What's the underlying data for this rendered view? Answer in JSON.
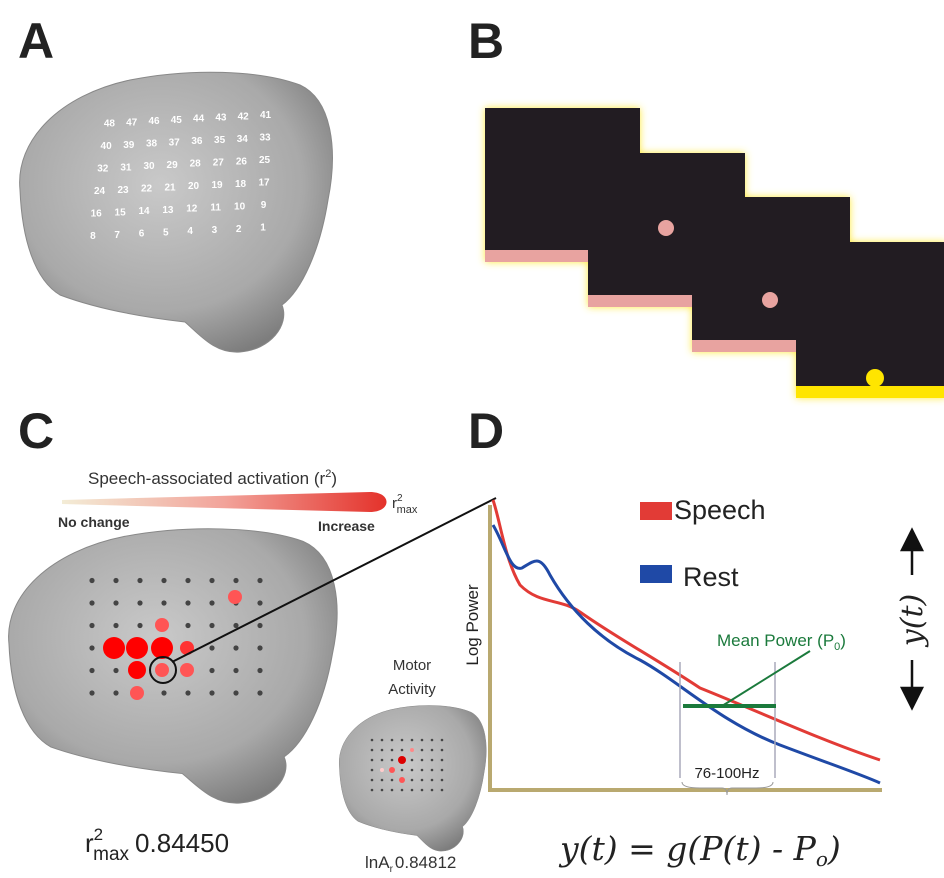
{
  "panels": {
    "a": {
      "label": "A",
      "electrodes": [
        1,
        2,
        3,
        4,
        5,
        6,
        7,
        8,
        9,
        10,
        11,
        12,
        13,
        14,
        15,
        16,
        17,
        18,
        19,
        20,
        21,
        22,
        23,
        24,
        25,
        26,
        27,
        28,
        29,
        30,
        31,
        32,
        33,
        34,
        35,
        36,
        37,
        38,
        39,
        40,
        41,
        42,
        43,
        44,
        45,
        46,
        47,
        48
      ]
    },
    "b": {
      "label": "B"
    },
    "c": {
      "label": "C",
      "scale_title": "Speech-associated activation (r",
      "scale_title_sup": "2",
      "scale_title_end": ")",
      "scale_min": "No change",
      "scale_max": "Increase",
      "rmax_r": "r",
      "rmax_sup": "2",
      "rmax_sub": "max",
      "result_value": "0.84450",
      "inset_title_line1": "Motor",
      "inset_title_line2": "Activity",
      "inset_label": "lnA",
      "inset_label_sub": "r",
      "inset_value": "0.84812"
    },
    "d": {
      "label": "D",
      "y_axis_label": "Log Power",
      "legend": [
        "Speech",
        "Rest"
      ],
      "mean_power": "Mean Power (P",
      "mean_power_sub": "0",
      "mean_power_end": ")",
      "band": "76-100Hz",
      "output_label": "y(t)",
      "equation": "y(t) = g(P(t) - P",
      "equation_sub": "o",
      "equation_end": ")"
    }
  }
}
